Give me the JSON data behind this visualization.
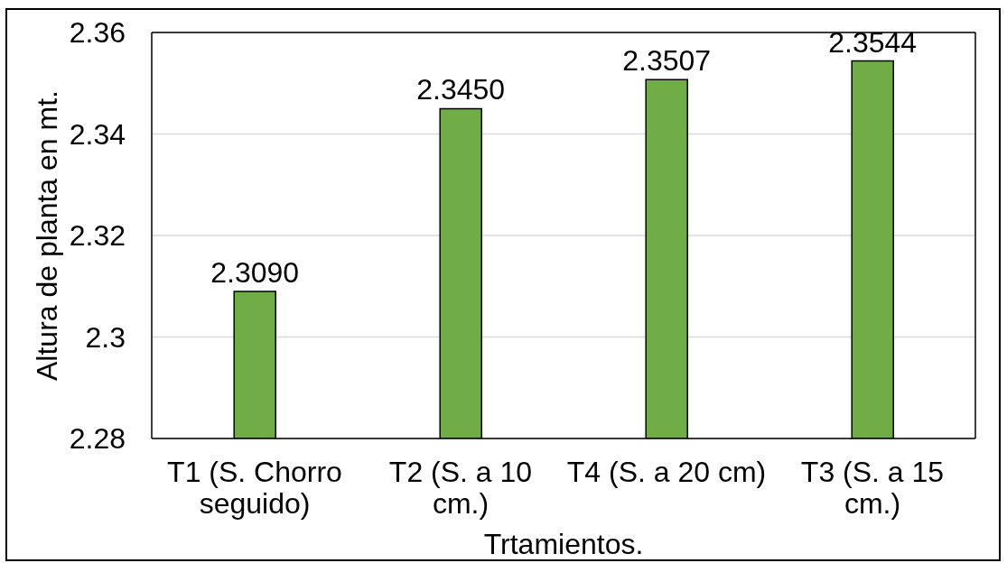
{
  "chart_data": {
    "type": "bar",
    "xlabel": "Trtamientos.",
    "ylabel": "Altura de planta en mt.",
    "categories": [
      "T1 (S. Chorro seguido)",
      "T2 (S. a 10 cm.)",
      "T4 (S. a 20 cm)",
      "T3 (S. a 15 cm.)"
    ],
    "values": [
      2.309,
      2.345,
      2.3507,
      2.3544
    ],
    "value_labels": [
      "2.3090",
      "2.3450",
      "2.3507",
      "2.3544"
    ],
    "color": "#70ad47",
    "ylim": [
      2.28,
      2.36
    ],
    "yticks": [
      2.28,
      2.3,
      2.32,
      2.34,
      2.36
    ],
    "grid": "y"
  }
}
